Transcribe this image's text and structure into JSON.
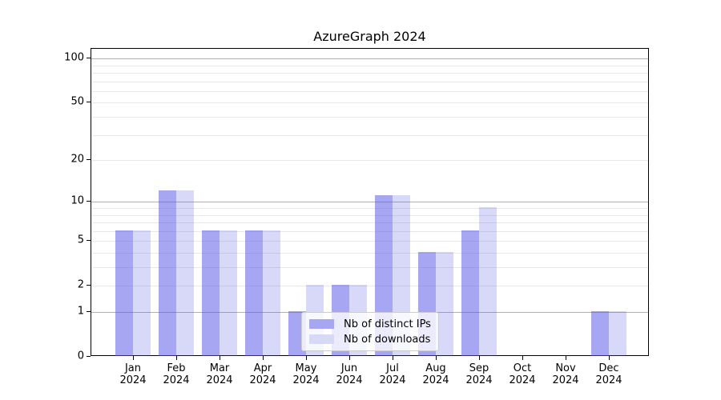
{
  "chart_data": {
    "type": "bar",
    "title": "AzureGraph 2024",
    "months": [
      "Jan",
      "Feb",
      "Mar",
      "Apr",
      "May",
      "Jun",
      "Jul",
      "Aug",
      "Sep",
      "Oct",
      "Nov",
      "Dec"
    ],
    "year": "2024",
    "series": [
      {
        "name": "Nb of distinct IPs",
        "key": "distinct-ips",
        "color": "rgba(85,85,230,0.52)",
        "swatch_hex": "#a6a6f1",
        "values": [
          6,
          12,
          6,
          6,
          1,
          2,
          11,
          4,
          6,
          0,
          0,
          1
        ]
      },
      {
        "name": "Nb of downloads",
        "key": "downloads",
        "color": "rgba(85,85,230,0.23)",
        "swatch_hex": "#d8d8f7",
        "values": [
          6,
          12,
          6,
          6,
          2,
          2,
          11,
          4,
          9,
          0,
          0,
          1
        ]
      }
    ],
    "yscale": "log1p",
    "ylim": [
      0,
      117
    ],
    "yticks": [
      0,
      1,
      2,
      5,
      10,
      20,
      50,
      100
    ],
    "ytick_labels": [
      "0",
      "1",
      "2",
      "5",
      "10",
      "20",
      "50",
      "100"
    ],
    "major_gridlines": [
      1,
      10,
      100
    ],
    "light_gridlines": [
      2,
      5,
      20,
      50
    ],
    "minor_gridlines": [
      3,
      4,
      6,
      7,
      8,
      9,
      30,
      40,
      60,
      70,
      80,
      90
    ],
    "grid": true,
    "legend_position": "lower center",
    "colors": {
      "frame": "#000000",
      "major_grid": "#b0b0b0",
      "minor_grid": "#e8e8e8",
      "background": "#ffffff"
    }
  }
}
